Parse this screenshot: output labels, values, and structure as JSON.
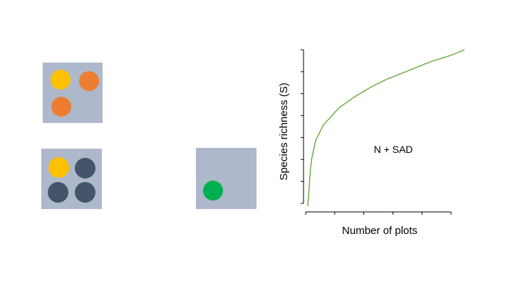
{
  "colors": {
    "plot_background": "#adb9ca",
    "yellow": "#ffc000",
    "orange": "#ed7d31",
    "dark": "#44546a",
    "green": "#00b050",
    "curve": "#70ad47",
    "axis": "#000000"
  },
  "plots": [
    {
      "name": "plot-a",
      "individuals": [
        "yellow",
        "orange",
        "orange"
      ]
    },
    {
      "name": "plot-b",
      "individuals": [
        "yellow",
        "dark",
        "dark",
        "dark"
      ]
    },
    {
      "name": "plot-c",
      "individuals": [
        "green"
      ]
    }
  ],
  "chart_data": {
    "type": "line",
    "title": "",
    "xlabel": "Number of plots",
    "ylabel": "Species richness (S)",
    "annotation": "N + SAD",
    "x_ticks": 5,
    "y_ticks": 7,
    "grid": false,
    "series": [
      {
        "color": "#70ad47",
        "shape": "saturating",
        "x": [
          0,
          0.02,
          0.05,
          0.1,
          0.2,
          0.3,
          0.4,
          0.5,
          0.6,
          0.7,
          0.8,
          0.9,
          1.0
        ],
        "y": [
          0,
          0.28,
          0.42,
          0.52,
          0.63,
          0.7,
          0.76,
          0.81,
          0.85,
          0.89,
          0.93,
          0.96,
          1.0
        ]
      }
    ]
  }
}
